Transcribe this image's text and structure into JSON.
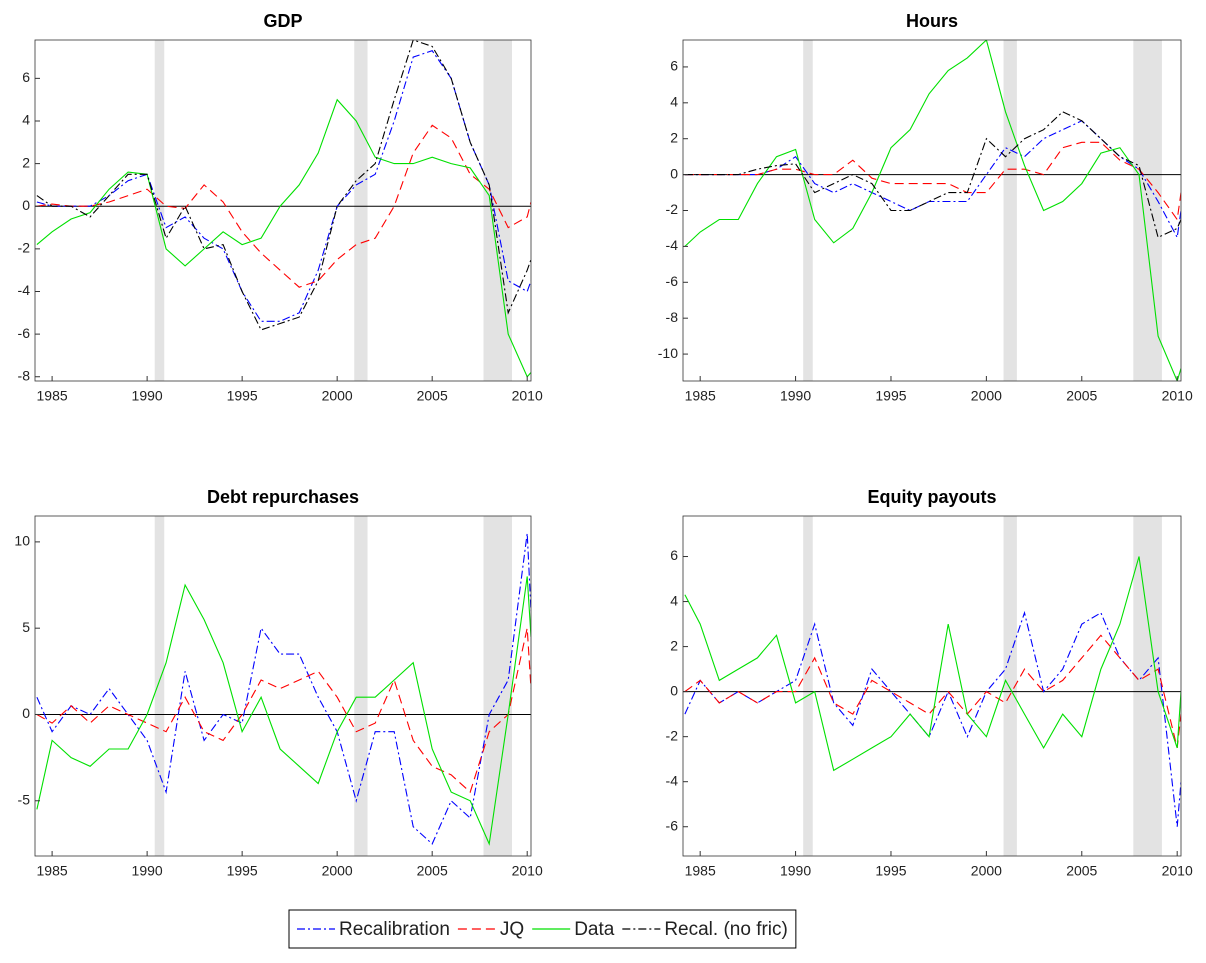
{
  "chart_data": [
    {
      "type": "line",
      "title": "GDP",
      "x": [
        1984.2,
        1985,
        1986,
        1987,
        1988,
        1989,
        1990,
        1991,
        1992,
        1993,
        1994,
        1995,
        1996,
        1997,
        1998,
        1999,
        2000,
        2001,
        2002,
        2003,
        2004,
        2005,
        2006,
        2007,
        2008,
        2009,
        2010,
        2010.2
      ],
      "series": [
        {
          "name": "Recalibration",
          "color": "#0000ff",
          "style": "dash-dot",
          "values": [
            0.2,
            0,
            0,
            0,
            0.5,
            1.2,
            1.5,
            -1.0,
            -0.5,
            -1.5,
            -2.0,
            -4.0,
            -5.4,
            -5.4,
            -5.0,
            -3.0,
            0,
            1.0,
            1.5,
            4.0,
            7.0,
            7.3,
            6.0,
            3.0,
            1.0,
            -3.5,
            -4.0,
            -3.5
          ]
        },
        {
          "name": "JQ",
          "color": "#ff0000",
          "style": "dashed",
          "values": [
            0,
            0.1,
            0,
            0,
            0.2,
            0.5,
            0.8,
            0,
            -0.1,
            1.0,
            0.2,
            -1.2,
            -2.2,
            -3.0,
            -3.8,
            -3.5,
            -2.5,
            -1.8,
            -1.5,
            0,
            2.5,
            3.8,
            3.2,
            1.5,
            0.8,
            -1.0,
            -0.5,
            0.2
          ]
        },
        {
          "name": "Data",
          "color": "#00e000",
          "style": "solid",
          "values": [
            -1.8,
            -1.2,
            -0.6,
            -0.3,
            0.8,
            1.6,
            1.5,
            -2.0,
            -2.8,
            -2.0,
            -1.2,
            -1.8,
            -1.5,
            0,
            1.0,
            2.5,
            5.0,
            4.0,
            2.3,
            2.0,
            2.0,
            2.3,
            2.0,
            1.8,
            0.5,
            -6.0,
            -8.0,
            -7.8
          ]
        },
        {
          "name": "Recal. (no fric)",
          "color": "#000000",
          "style": "dash-dot",
          "values": [
            0.5,
            0,
            0,
            -0.5,
            0.5,
            1.5,
            1.5,
            -1.5,
            0,
            -2.0,
            -1.8,
            -4.0,
            -5.8,
            -5.5,
            -5.2,
            -3.5,
            0,
            1.2,
            2.0,
            5.0,
            7.8,
            7.5,
            6.0,
            3.0,
            1.0,
            -5.0,
            -3.0,
            -2.5
          ]
        }
      ],
      "recessions": [
        [
          1990.4,
          1990.9
        ],
        [
          2000.9,
          2001.6
        ],
        [
          2007.7,
          2009.2
        ]
      ],
      "xlim": [
        1984.1,
        2010.2
      ],
      "xticks": [
        1985,
        1990,
        1995,
        2000,
        2005,
        2010
      ],
      "ylim": [
        -8.2,
        7.8
      ],
      "yticks": [
        -8,
        -6,
        -4,
        -2,
        0,
        2,
        4,
        6
      ]
    },
    {
      "type": "line",
      "title": "Hours",
      "x": [
        1984.2,
        1985,
        1986,
        1987,
        1988,
        1989,
        1990,
        1991,
        1992,
        1993,
        1994,
        1995,
        1996,
        1997,
        1998,
        1999,
        2000,
        2001,
        2002,
        2003,
        2004,
        2005,
        2006,
        2007,
        2008,
        2009,
        2010,
        2010.2
      ],
      "series": [
        {
          "name": "Recalibration",
          "color": "#0000ff",
          "style": "dash-dot",
          "values": [
            0,
            0,
            0,
            0,
            0,
            0.3,
            1.0,
            -0.5,
            -1.0,
            -0.5,
            -1.0,
            -1.5,
            -2.0,
            -1.5,
            -1.5,
            -1.5,
            0,
            1.5,
            1.0,
            2.0,
            2.5,
            3.0,
            2.0,
            1.0,
            0.3,
            -1.5,
            -3.5,
            -2.0
          ]
        },
        {
          "name": "JQ",
          "color": "#ff0000",
          "style": "dashed",
          "values": [
            0,
            0,
            0,
            0,
            0,
            0.3,
            0.3,
            0,
            0,
            0.8,
            -0.2,
            -0.5,
            -0.5,
            -0.5,
            -0.5,
            -1.0,
            -1.0,
            0.3,
            0.3,
            0,
            1.5,
            1.8,
            1.8,
            0.8,
            0.3,
            -1.0,
            -2.5,
            -1.0
          ]
        },
        {
          "name": "Data",
          "color": "#00e000",
          "style": "solid",
          "values": [
            -4.0,
            -3.2,
            -2.5,
            -2.5,
            -0.5,
            1.0,
            1.4,
            -2.5,
            -3.8,
            -3.0,
            -1.0,
            1.5,
            2.5,
            4.5,
            5.8,
            6.5,
            7.5,
            3.5,
            0.5,
            -2.0,
            -1.5,
            -0.5,
            1.2,
            1.5,
            0,
            -9.0,
            -11.5,
            -10.8
          ]
        },
        {
          "name": "Recal. (no fric)",
          "color": "#000000",
          "style": "dash-dot",
          "values": [
            0,
            0,
            0,
            0,
            0.3,
            0.5,
            0.6,
            -1.0,
            -0.5,
            0,
            -0.5,
            -2.0,
            -2.0,
            -1.5,
            -1.0,
            -1.0,
            2.0,
            1.0,
            2.0,
            2.5,
            3.5,
            3.0,
            2.0,
            1.0,
            0.5,
            -3.5,
            -3.0,
            -2.5
          ]
        }
      ],
      "recessions": [
        [
          1990.4,
          1990.9
        ],
        [
          2000.9,
          2001.6
        ],
        [
          2007.7,
          2009.2
        ]
      ],
      "xlim": [
        1984.1,
        2010.2
      ],
      "xticks": [
        1985,
        1990,
        1995,
        2000,
        2005,
        2010
      ],
      "ylim": [
        -11.5,
        7.5
      ],
      "yticks": [
        -10,
        -8,
        -6,
        -4,
        -2,
        0,
        2,
        4,
        6
      ]
    },
    {
      "type": "line",
      "title": "Debt repurchases",
      "x": [
        1984.2,
        1985,
        1986,
        1987,
        1988,
        1989,
        1990,
        1991,
        1992,
        1993,
        1994,
        1995,
        1996,
        1997,
        1998,
        1999,
        2000,
        2001,
        2002,
        2003,
        2004,
        2005,
        2006,
        2007,
        2008,
        2009,
        2010,
        2010.2
      ],
      "series": [
        {
          "name": "Recalibration",
          "color": "#0000ff",
          "style": "dash-dot",
          "values": [
            1.0,
            -1.0,
            0.5,
            0,
            1.5,
            0,
            -1.5,
            -4.5,
            2.5,
            -1.5,
            0,
            -0.5,
            5.0,
            3.5,
            3.5,
            1.0,
            -1.0,
            -5.0,
            -1.0,
            -1.0,
            -6.5,
            -7.5,
            -5.0,
            -6.0,
            0,
            2.0,
            10.5,
            6.0
          ]
        },
        {
          "name": "JQ",
          "color": "#ff0000",
          "style": "dashed",
          "values": [
            0,
            -0.5,
            0.5,
            -0.5,
            0.5,
            0,
            -0.5,
            -1.0,
            1.0,
            -1.0,
            -1.5,
            0,
            2.0,
            1.5,
            2.0,
            2.5,
            1.0,
            -1.0,
            -0.5,
            2.0,
            -1.5,
            -3.0,
            -3.5,
            -4.5,
            -1.0,
            0,
            5.0,
            1.5
          ]
        },
        {
          "name": "Data",
          "color": "#00e000",
          "style": "solid",
          "values": [
            -5.5,
            -1.5,
            -2.5,
            -3.0,
            -2.0,
            -2.0,
            0,
            3.0,
            7.5,
            5.5,
            3.0,
            -1.0,
            1.0,
            -2.0,
            -3.0,
            -4.0,
            -1.0,
            1.0,
            1.0,
            2.0,
            3.0,
            -2.0,
            -4.5,
            -5.0,
            -7.5,
            0,
            8.0,
            4.5
          ]
        }
      ],
      "recessions": [
        [
          1990.4,
          1990.9
        ],
        [
          2000.9,
          2001.6
        ],
        [
          2007.7,
          2009.2
        ]
      ],
      "xlim": [
        1984.1,
        2010.2
      ],
      "xticks": [
        1985,
        1990,
        1995,
        2000,
        2005,
        2010
      ],
      "ylim": [
        -8.2,
        11.5
      ],
      "yticks": [
        -5,
        0,
        5,
        10
      ]
    },
    {
      "type": "line",
      "title": "Equity payouts",
      "x": [
        1984.2,
        1985,
        1986,
        1987,
        1988,
        1989,
        1990,
        1991,
        1992,
        1993,
        1994,
        1995,
        1996,
        1997,
        1998,
        1999,
        2000,
        2001,
        2002,
        2003,
        2004,
        2005,
        2006,
        2007,
        2008,
        2009,
        2010,
        2010.2
      ],
      "series": [
        {
          "name": "Recalibration",
          "color": "#0000ff",
          "style": "dash-dot",
          "values": [
            -1.0,
            0.5,
            -0.5,
            0,
            -0.5,
            0,
            0.5,
            3.0,
            -0.5,
            -1.5,
            1.0,
            0,
            -1.0,
            -2.0,
            0,
            -2.0,
            0,
            1.0,
            3.5,
            0,
            1.0,
            3.0,
            3.5,
            1.5,
            0.5,
            1.5,
            -6.0,
            -4.0
          ]
        },
        {
          "name": "JQ",
          "color": "#ff0000",
          "style": "dashed",
          "values": [
            0,
            0.5,
            -0.5,
            0,
            -0.5,
            0,
            0,
            1.5,
            -0.5,
            -1.0,
            0.5,
            0,
            -0.5,
            -1.0,
            0,
            -1.0,
            0,
            -0.5,
            1.0,
            0,
            0.5,
            1.5,
            2.5,
            1.5,
            0.5,
            1.0,
            -2.5,
            -1.0
          ]
        },
        {
          "name": "Data",
          "color": "#00e000",
          "style": "solid",
          "values": [
            4.3,
            3.0,
            0.5,
            1.0,
            1.5,
            2.5,
            -0.5,
            0,
            -3.5,
            -3.0,
            -2.5,
            -2.0,
            -1.0,
            -2.0,
            3.0,
            -1.0,
            -2.0,
            0.5,
            -1.0,
            -2.5,
            -1.0,
            -2.0,
            1.0,
            3.0,
            6.0,
            0,
            -2.5,
            0
          ]
        }
      ],
      "recessions": [
        [
          1990.4,
          1990.9
        ],
        [
          2000.9,
          2001.6
        ],
        [
          2007.7,
          2009.2
        ]
      ],
      "xlim": [
        1984.1,
        2010.2
      ],
      "xticks": [
        1985,
        1990,
        1995,
        2000,
        2005,
        2010
      ],
      "ylim": [
        -7.3,
        7.8
      ],
      "yticks": [
        -6,
        -4,
        -2,
        0,
        2,
        4,
        6
      ]
    }
  ]
}
